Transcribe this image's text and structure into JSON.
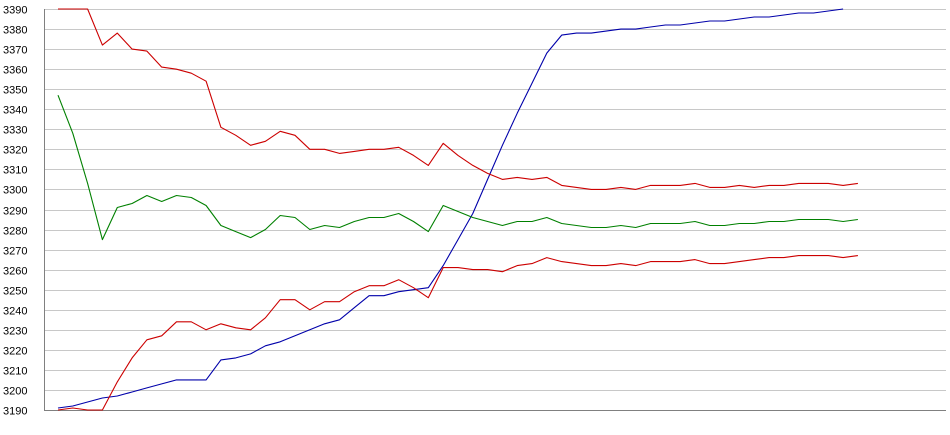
{
  "chart_data": {
    "type": "line",
    "title": "",
    "xlabel": "",
    "ylabel": "",
    "ylim": [
      3190,
      3390
    ],
    "yticks": [
      3190,
      3200,
      3210,
      3220,
      3230,
      3240,
      3250,
      3260,
      3270,
      3280,
      3290,
      3300,
      3310,
      3320,
      3330,
      3340,
      3350,
      3360,
      3370,
      3380,
      3390
    ],
    "grid": "horizontal",
    "x_count": 60,
    "series": [
      {
        "color": "#0000aa",
        "values": [
          3191,
          3192,
          3194,
          3196,
          3197,
          3199,
          3201,
          3203,
          3205,
          3205,
          3205,
          3215,
          3216,
          3218,
          3222,
          3224,
          3227,
          3230,
          3233,
          3235,
          3241,
          3247,
          3247,
          3249,
          3250,
          3251,
          3262,
          3275,
          3288,
          3305,
          3322,
          3338,
          3353,
          3368,
          3377,
          3378,
          3378,
          3379,
          3380,
          3380,
          3381,
          3382,
          3382,
          3383,
          3384,
          3384,
          3385,
          3386,
          3386,
          3387,
          3388,
          3388,
          3389,
          3390
        ]
      },
      {
        "color": "#cc0000",
        "values": [
          3390,
          3390,
          3390,
          3372,
          3378,
          3370,
          3369,
          3361,
          3360,
          3358,
          3354,
          3331,
          3327,
          3322,
          3324,
          3329,
          3327,
          3320,
          3320,
          3318,
          3319,
          3320,
          3320,
          3321,
          3317,
          3312,
          3323,
          3317,
          3312,
          3308,
          3305,
          3306,
          3305,
          3306,
          3302,
          3301,
          3300,
          3300,
          3301,
          3300,
          3302,
          3302,
          3302,
          3303,
          3301,
          3301,
          3302,
          3301,
          3302,
          3302,
          3303,
          3303,
          3303,
          3302,
          3303
        ]
      },
      {
        "color": "#008000",
        "values": [
          3347,
          3328,
          3303,
          3275,
          3291,
          3293,
          3297,
          3294,
          3297,
          3296,
          3292,
          3282,
          3279,
          3276,
          3280,
          3287,
          3286,
          3280,
          3282,
          3281,
          3284,
          3286,
          3286,
          3288,
          3284,
          3279,
          3292,
          3289,
          3286,
          3284,
          3282,
          3284,
          3284,
          3286,
          3283,
          3282,
          3281,
          3281,
          3282,
          3281,
          3283,
          3283,
          3283,
          3284,
          3282,
          3282,
          3283,
          3283,
          3284,
          3284,
          3285,
          3285,
          3285,
          3284,
          3285
        ]
      },
      {
        "color": "#cc0000",
        "values": [
          3190,
          3191,
          3190,
          3190,
          3204,
          3216,
          3225,
          3227,
          3234,
          3234,
          3230,
          3233,
          3231,
          3230,
          3236,
          3245,
          3245,
          3240,
          3244,
          3244,
          3249,
          3252,
          3252,
          3255,
          3251,
          3246,
          3261,
          3261,
          3260,
          3260,
          3259,
          3262,
          3263,
          3266,
          3264,
          3263,
          3262,
          3262,
          3263,
          3262,
          3264,
          3264,
          3264,
          3265,
          3263,
          3263,
          3264,
          3265,
          3266,
          3266,
          3267,
          3267,
          3267,
          3266,
          3267
        ]
      }
    ]
  }
}
